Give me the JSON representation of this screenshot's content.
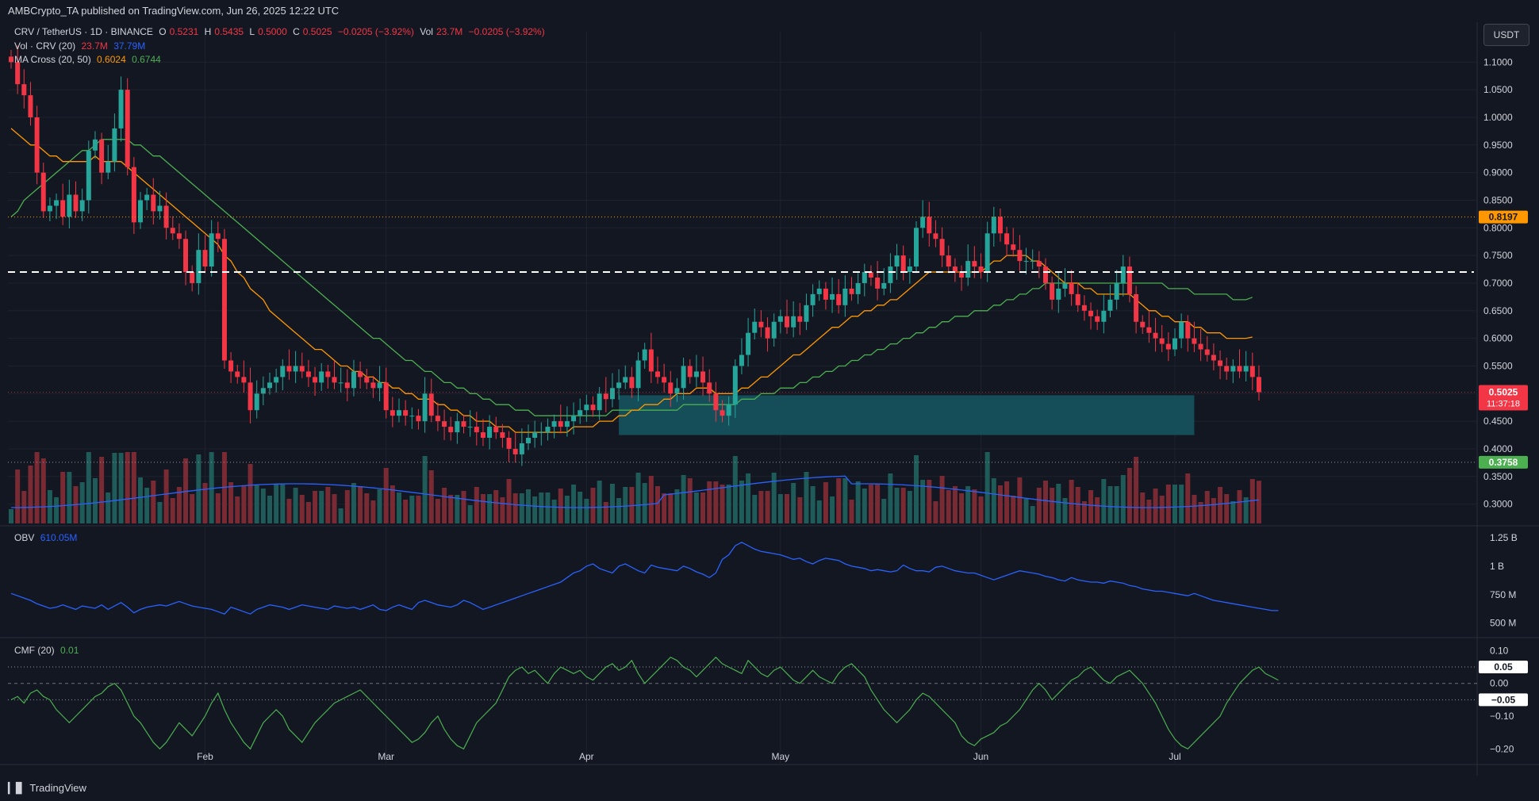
{
  "header": {
    "publisher": "AMBCrypto_TA published on TradingView.com, Jun 26, 2025 12:22 UTC"
  },
  "legend": {
    "symbol": "CRV / TetherUS · 1D · BINANCE",
    "ohlc": {
      "o_label": "O",
      "o": "0.5231",
      "h_label": "H",
      "h": "0.5435",
      "l_label": "L",
      "l": "0.5000",
      "c_label": "C",
      "c": "0.5025",
      "change": "−0.0205 (−3.92%)",
      "vol_label": "Vol",
      "vol": "23.7M",
      "vol_change": "−0.0205 (−3.92%)"
    },
    "vol_line": {
      "label": "Vol · CRV (20)",
      "v1": "23.7M",
      "v2": "37.79M"
    },
    "ma_line": {
      "label": "MA Cross (20, 50)",
      "v1": "0.6024",
      "v2": "0.6744"
    }
  },
  "currency_button": "USDT",
  "price_badges": {
    "level_high": "0.8197",
    "current_price": "0.5025",
    "countdown": "11:37:18",
    "level_low": "0.3758"
  },
  "obv": {
    "label": "OBV",
    "value": "610.05M"
  },
  "cmf": {
    "label": "CMF (20)",
    "value": "0.01",
    "upper_badge": "0.05",
    "lower_badge": "−0.05"
  },
  "footer": {
    "brand": "TradingView"
  },
  "colors": {
    "up": "#26a69a",
    "down": "#f23645",
    "ma20": "#ff9800",
    "ma50": "#4caf50",
    "obv": "#2962ff",
    "zone": "#16535e"
  },
  "chart_data": {
    "type": "candlestick",
    "title": "CRV / TetherUS · 1D · BINANCE",
    "x_tick_labels": [
      "Feb",
      "Mar",
      "Apr",
      "May",
      "Jun",
      "Jul"
    ],
    "x_tick_dates": [
      "2025-02-01",
      "2025-03-01",
      "2025-04-01",
      "2025-05-01",
      "2025-06-01",
      "2025-07-01"
    ],
    "first_date": "2025-01-02",
    "price_axis_labels": [
      "1.1000",
      "1.0500",
      "1.0000",
      "0.9500",
      "0.9000",
      "0.8500",
      "0.8000",
      "0.7500",
      "0.7000",
      "0.6500",
      "0.6000",
      "0.5500",
      "0.5000",
      "0.4500",
      "0.4000",
      "0.3500",
      "0.3000"
    ],
    "price_range": [
      0.265,
      1.155
    ],
    "resistance_dashed": 0.72,
    "dotted_levels": [
      0.8197,
      0.3758
    ],
    "support_zone": {
      "from_date": "2025-04-06",
      "to_date": "2025-07-04",
      "low": 0.425,
      "high": 0.497
    },
    "closes": [
      1.1,
      1.06,
      1.04,
      1.0,
      0.9,
      0.83,
      0.84,
      0.85,
      0.82,
      0.86,
      0.83,
      0.85,
      0.94,
      0.96,
      0.9,
      0.92,
      0.98,
      1.05,
      0.91,
      0.81,
      0.85,
      0.86,
      0.83,
      0.84,
      0.8,
      0.79,
      0.78,
      0.72,
      0.7,
      0.76,
      0.73,
      0.79,
      0.78,
      0.56,
      0.54,
      0.53,
      0.52,
      0.47,
      0.5,
      0.51,
      0.52,
      0.53,
      0.55,
      0.54,
      0.55,
      0.54,
      0.53,
      0.52,
      0.54,
      0.53,
      0.52,
      0.52,
      0.51,
      0.54,
      0.53,
      0.52,
      0.51,
      0.52,
      0.47,
      0.46,
      0.47,
      0.46,
      0.46,
      0.45,
      0.5,
      0.46,
      0.45,
      0.44,
      0.43,
      0.45,
      0.44,
      0.44,
      0.43,
      0.42,
      0.44,
      0.43,
      0.42,
      0.4,
      0.39,
      0.41,
      0.42,
      0.43,
      0.43,
      0.44,
      0.45,
      0.44,
      0.45,
      0.46,
      0.47,
      0.48,
      0.47,
      0.5,
      0.49,
      0.51,
      0.52,
      0.53,
      0.51,
      0.56,
      0.58,
      0.54,
      0.53,
      0.52,
      0.5,
      0.51,
      0.55,
      0.53,
      0.54,
      0.52,
      0.5,
      0.47,
      0.46,
      0.48,
      0.55,
      0.57,
      0.61,
      0.63,
      0.62,
      0.6,
      0.63,
      0.64,
      0.62,
      0.64,
      0.63,
      0.66,
      0.68,
      0.69,
      0.67,
      0.68,
      0.66,
      0.69,
      0.68,
      0.7,
      0.72,
      0.71,
      0.69,
      0.7,
      0.73,
      0.75,
      0.72,
      0.73,
      0.8,
      0.82,
      0.79,
      0.78,
      0.75,
      0.73,
      0.72,
      0.71,
      0.74,
      0.73,
      0.72,
      0.79,
      0.82,
      0.79,
      0.77,
      0.76,
      0.74,
      0.74,
      0.74,
      0.73,
      0.7,
      0.67,
      0.69,
      0.7,
      0.68,
      0.66,
      0.65,
      0.64,
      0.63,
      0.65,
      0.67,
      0.7,
      0.73,
      0.68,
      0.63,
      0.62,
      0.61,
      0.6,
      0.59,
      0.58,
      0.6,
      0.63,
      0.6,
      0.59,
      0.58,
      0.57,
      0.56,
      0.55,
      0.54,
      0.55,
      0.54,
      0.55,
      0.53,
      0.5025
    ],
    "ma20": [
      0.98,
      0.97,
      0.96,
      0.95,
      0.95,
      0.94,
      0.93,
      0.93,
      0.92,
      0.92,
      0.92,
      0.92,
      0.92,
      0.93,
      0.92,
      0.92,
      0.92,
      0.92,
      0.91,
      0.9,
      0.89,
      0.88,
      0.87,
      0.86,
      0.85,
      0.84,
      0.83,
      0.82,
      0.81,
      0.8,
      0.79,
      0.78,
      0.77,
      0.75,
      0.74,
      0.72,
      0.71,
      0.69,
      0.68,
      0.67,
      0.65,
      0.64,
      0.63,
      0.62,
      0.61,
      0.6,
      0.59,
      0.58,
      0.58,
      0.57,
      0.56,
      0.55,
      0.55,
      0.54,
      0.54,
      0.53,
      0.53,
      0.52,
      0.52,
      0.51,
      0.51,
      0.5,
      0.5,
      0.49,
      0.49,
      0.49,
      0.48,
      0.48,
      0.47,
      0.47,
      0.46,
      0.46,
      0.45,
      0.45,
      0.45,
      0.44,
      0.44,
      0.44,
      0.43,
      0.43,
      0.43,
      0.43,
      0.43,
      0.43,
      0.43,
      0.43,
      0.43,
      0.44,
      0.44,
      0.44,
      0.44,
      0.45,
      0.45,
      0.45,
      0.46,
      0.46,
      0.47,
      0.47,
      0.48,
      0.48,
      0.48,
      0.49,
      0.49,
      0.5,
      0.5,
      0.5,
      0.51,
      0.51,
      0.51,
      0.5,
      0.5,
      0.5,
      0.5,
      0.51,
      0.51,
      0.52,
      0.53,
      0.53,
      0.54,
      0.55,
      0.56,
      0.57,
      0.57,
      0.58,
      0.59,
      0.6,
      0.61,
      0.62,
      0.62,
      0.63,
      0.64,
      0.64,
      0.65,
      0.65,
      0.66,
      0.66,
      0.67,
      0.67,
      0.68,
      0.69,
      0.7,
      0.71,
      0.72,
      0.72,
      0.72,
      0.72,
      0.72,
      0.72,
      0.72,
      0.72,
      0.72,
      0.73,
      0.74,
      0.74,
      0.75,
      0.75,
      0.75,
      0.75,
      0.74,
      0.74,
      0.73,
      0.72,
      0.71,
      0.7,
      0.7,
      0.7,
      0.69,
      0.69,
      0.68,
      0.68,
      0.68,
      0.68,
      0.68,
      0.68,
      0.67,
      0.66,
      0.65,
      0.65,
      0.64,
      0.64,
      0.63,
      0.63,
      0.63,
      0.62,
      0.62,
      0.61,
      0.61,
      0.61,
      0.6,
      0.6,
      0.6,
      0.6,
      0.6024
    ],
    "ma50": [
      0.82,
      0.83,
      0.85,
      0.86,
      0.87,
      0.88,
      0.89,
      0.9,
      0.91,
      0.92,
      0.93,
      0.94,
      0.94,
      0.95,
      0.96,
      0.96,
      0.96,
      0.96,
      0.96,
      0.95,
      0.95,
      0.94,
      0.93,
      0.93,
      0.92,
      0.91,
      0.9,
      0.89,
      0.88,
      0.87,
      0.86,
      0.85,
      0.84,
      0.83,
      0.82,
      0.81,
      0.8,
      0.79,
      0.78,
      0.77,
      0.76,
      0.75,
      0.74,
      0.73,
      0.72,
      0.71,
      0.7,
      0.69,
      0.68,
      0.67,
      0.66,
      0.65,
      0.64,
      0.63,
      0.62,
      0.61,
      0.6,
      0.6,
      0.59,
      0.58,
      0.57,
      0.56,
      0.56,
      0.55,
      0.54,
      0.54,
      0.53,
      0.52,
      0.52,
      0.51,
      0.51,
      0.5,
      0.5,
      0.49,
      0.49,
      0.48,
      0.48,
      0.48,
      0.47,
      0.47,
      0.47,
      0.46,
      0.46,
      0.46,
      0.46,
      0.46,
      0.46,
      0.46,
      0.46,
      0.46,
      0.46,
      0.46,
      0.46,
      0.47,
      0.47,
      0.47,
      0.47,
      0.47,
      0.47,
      0.47,
      0.47,
      0.47,
      0.47,
      0.47,
      0.48,
      0.48,
      0.48,
      0.48,
      0.48,
      0.48,
      0.48,
      0.48,
      0.48,
      0.49,
      0.49,
      0.49,
      0.5,
      0.5,
      0.5,
      0.51,
      0.51,
      0.51,
      0.52,
      0.52,
      0.53,
      0.53,
      0.54,
      0.54,
      0.55,
      0.55,
      0.56,
      0.56,
      0.57,
      0.57,
      0.58,
      0.58,
      0.59,
      0.59,
      0.6,
      0.6,
      0.61,
      0.61,
      0.62,
      0.62,
      0.63,
      0.63,
      0.64,
      0.64,
      0.64,
      0.65,
      0.65,
      0.65,
      0.66,
      0.66,
      0.67,
      0.67,
      0.68,
      0.68,
      0.69,
      0.69,
      0.7,
      0.7,
      0.7,
      0.7,
      0.7,
      0.7,
      0.7,
      0.7,
      0.7,
      0.7,
      0.7,
      0.7,
      0.7,
      0.7,
      0.7,
      0.7,
      0.7,
      0.7,
      0.7,
      0.69,
      0.69,
      0.69,
      0.69,
      0.68,
      0.68,
      0.68,
      0.68,
      0.68,
      0.68,
      0.67,
      0.67,
      0.67,
      0.6744
    ],
    "volume_axis_note": "Volume overlay in price pane, Vol MA(20) line",
    "obv_axis_labels": [
      "1.25 B",
      "1 B",
      "750 M",
      "500 M"
    ],
    "obv_range_millions": [
      400,
      1320
    ],
    "obv_millions": [
      760,
      740,
      720,
      700,
      670,
      650,
      630,
      640,
      660,
      640,
      620,
      650,
      640,
      630,
      660,
      620,
      650,
      680,
      640,
      590,
      620,
      640,
      650,
      660,
      650,
      670,
      690,
      670,
      650,
      640,
      630,
      620,
      600,
      580,
      640,
      620,
      600,
      580,
      620,
      640,
      660,
      650,
      640,
      620,
      640,
      660,
      650,
      640,
      630,
      620,
      650,
      640,
      630,
      640,
      620,
      640,
      660,
      620,
      610,
      640,
      660,
      640,
      620,
      680,
      700,
      680,
      660,
      650,
      640,
      660,
      700,
      680,
      650,
      620,
      640,
      660,
      680,
      700,
      720,
      740,
      760,
      780,
      800,
      820,
      840,
      860,
      900,
      940,
      960,
      1000,
      1020,
      980,
      960,
      940,
      1000,
      1020,
      990,
      960,
      940,
      1010,
      990,
      980,
      970,
      960,
      1000,
      980,
      950,
      930,
      900,
      940,
      1060,
      1100,
      1180,
      1210,
      1180,
      1150,
      1130,
      1120,
      1110,
      1100,
      1080,
      1060,
      1070,
      1040,
      1020,
      1050,
      1070,
      1060,
      1050,
      1020,
      1000,
      990,
      980,
      960,
      970,
      960,
      950,
      960,
      1010,
      980,
      960,
      960,
      950,
      990,
      1000,
      980,
      960,
      950,
      940,
      940,
      920,
      900,
      880,
      900,
      920,
      940,
      960,
      950,
      940,
      930,
      910,
      900,
      880,
      870,
      900,
      880,
      870,
      860,
      860,
      850,
      870,
      860,
      850,
      830,
      820,
      800,
      790,
      780,
      780,
      770,
      760,
      750,
      740,
      760,
      740,
      720,
      700,
      690,
      680,
      670,
      660,
      650,
      640,
      630,
      620,
      610,
      610.05
    ],
    "cmf_axis_labels": [
      "0.10",
      "0.05",
      "0.00",
      "−0.10",
      "−0.20"
    ],
    "cmf_range": [
      -0.25,
      0.13
    ],
    "cmf_levels": [
      0.05,
      -0.05
    ],
    "cmf": [
      -0.05,
      -0.04,
      -0.06,
      -0.03,
      -0.02,
      -0.04,
      -0.05,
      -0.08,
      -0.1,
      -0.12,
      -0.1,
      -0.08,
      -0.06,
      -0.04,
      -0.03,
      -0.01,
      0.0,
      -0.02,
      -0.06,
      -0.1,
      -0.12,
      -0.15,
      -0.18,
      -0.2,
      -0.18,
      -0.15,
      -0.12,
      -0.14,
      -0.16,
      -0.13,
      -0.1,
      -0.06,
      -0.03,
      -0.08,
      -0.12,
      -0.15,
      -0.18,
      -0.2,
      -0.16,
      -0.12,
      -0.1,
      -0.08,
      -0.1,
      -0.14,
      -0.16,
      -0.18,
      -0.15,
      -0.12,
      -0.1,
      -0.08,
      -0.06,
      -0.05,
      -0.04,
      -0.03,
      -0.02,
      -0.04,
      -0.06,
      -0.08,
      -0.1,
      -0.12,
      -0.14,
      -0.16,
      -0.18,
      -0.17,
      -0.15,
      -0.12,
      -0.1,
      -0.14,
      -0.17,
      -0.19,
      -0.2,
      -0.16,
      -0.12,
      -0.1,
      -0.08,
      -0.06,
      -0.02,
      0.02,
      0.04,
      0.05,
      0.03,
      0.04,
      0.02,
      0.0,
      0.03,
      0.05,
      0.04,
      0.03,
      0.04,
      0.02,
      0.01,
      0.03,
      0.05,
      0.06,
      0.04,
      0.05,
      0.07,
      0.03,
      0.0,
      0.02,
      0.04,
      0.06,
      0.08,
      0.07,
      0.05,
      0.04,
      0.02,
      0.04,
      0.06,
      0.08,
      0.06,
      0.05,
      0.04,
      0.03,
      0.07,
      0.05,
      0.03,
      0.02,
      0.04,
      0.05,
      0.03,
      0.01,
      0.0,
      0.02,
      0.04,
      0.02,
      0.01,
      0.0,
      0.03,
      0.05,
      0.06,
      0.04,
      0.02,
      -0.02,
      -0.05,
      -0.08,
      -0.1,
      -0.12,
      -0.1,
      -0.08,
      -0.05,
      -0.03,
      -0.04,
      -0.06,
      -0.08,
      -0.1,
      -0.12,
      -0.16,
      -0.18,
      -0.19,
      -0.17,
      -0.16,
      -0.15,
      -0.13,
      -0.12,
      -0.1,
      -0.08,
      -0.05,
      -0.02,
      0.0,
      -0.02,
      -0.05,
      -0.03,
      -0.01,
      0.01,
      0.02,
      0.04,
      0.05,
      0.03,
      0.01,
      0.0,
      0.02,
      0.03,
      0.04,
      0.02,
      0.0,
      -0.03,
      -0.06,
      -0.1,
      -0.14,
      -0.17,
      -0.19,
      -0.2,
      -0.18,
      -0.16,
      -0.14,
      -0.12,
      -0.1,
      -0.06,
      -0.03,
      0.0,
      0.02,
      0.04,
      0.05,
      0.03,
      0.02,
      0.01
    ]
  }
}
